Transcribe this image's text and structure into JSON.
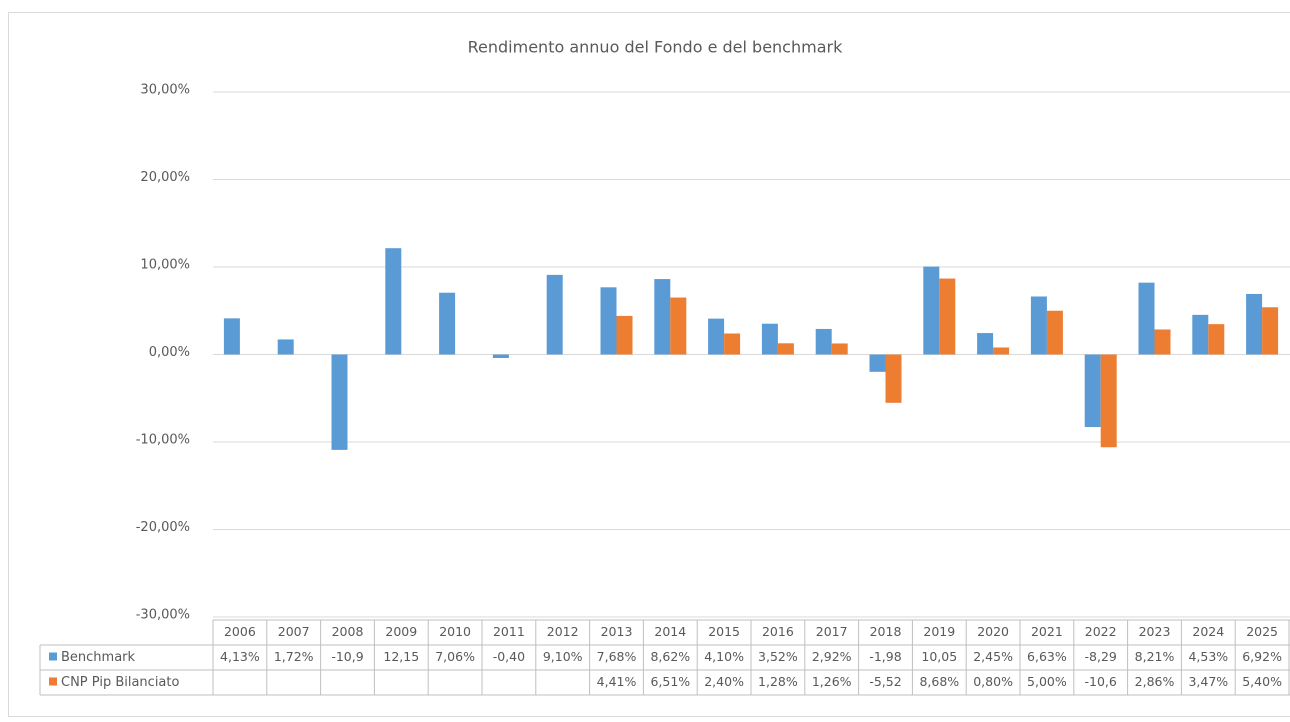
{
  "chart_data": {
    "type": "bar",
    "title": "Rendimento annuo del Fondo e del benchmark",
    "categories": [
      "2006",
      "2007",
      "2008",
      "2009",
      "2010",
      "2011",
      "2012",
      "2013",
      "2014",
      "2015",
      "2016",
      "2017",
      "2018",
      "2019",
      "2020",
      "2021",
      "2022",
      "2023",
      "2024",
      "2025"
    ],
    "series": [
      {
        "name": "Benchmark",
        "color": "#5b9bd5",
        "values": [
          4.13,
          1.72,
          -10.9,
          12.15,
          7.06,
          -0.4,
          9.1,
          7.68,
          8.62,
          4.1,
          3.52,
          2.92,
          -1.98,
          10.05,
          2.45,
          6.63,
          -8.29,
          8.21,
          4.53,
          6.92
        ],
        "value_labels": [
          "4,13%",
          "1,72%",
          "-10,9",
          "12,15",
          "7,06%",
          "-0,40",
          "9,10%",
          "7,68%",
          "8,62%",
          "4,10%",
          "3,52%",
          "2,92%",
          "-1,98",
          "10,05",
          "2,45%",
          "6,63%",
          "-8,29",
          "8,21%",
          "4,53%",
          "6,92%"
        ]
      },
      {
        "name": "CNP Pip Bilanciato",
        "color": "#ed7d31",
        "values": [
          null,
          null,
          null,
          null,
          null,
          null,
          null,
          4.41,
          6.51,
          2.4,
          1.28,
          1.26,
          -5.52,
          8.68,
          0.8,
          5.0,
          -10.6,
          2.86,
          3.47,
          5.4
        ],
        "value_labels": [
          null,
          null,
          null,
          null,
          null,
          null,
          null,
          "4,41%",
          "6,51%",
          "2,40%",
          "1,28%",
          "1,26%",
          "-5,52",
          "8,68%",
          "0,80%",
          "5,00%",
          "-10,6",
          "2,86%",
          "3,47%",
          "5,40%"
        ]
      }
    ],
    "ylim": [
      -30,
      30
    ],
    "yticks": [
      {
        "value": -30,
        "label": "-30,00%"
      },
      {
        "value": -20,
        "label": "-20,00%"
      },
      {
        "value": -10,
        "label": "-10,00%"
      },
      {
        "value": 0,
        "label": "0,00%"
      },
      {
        "value": 10,
        "label": "10,00%"
      },
      {
        "value": 20,
        "label": "20,00%"
      },
      {
        "value": 30,
        "label": "30,00%"
      }
    ],
    "grid": true
  }
}
